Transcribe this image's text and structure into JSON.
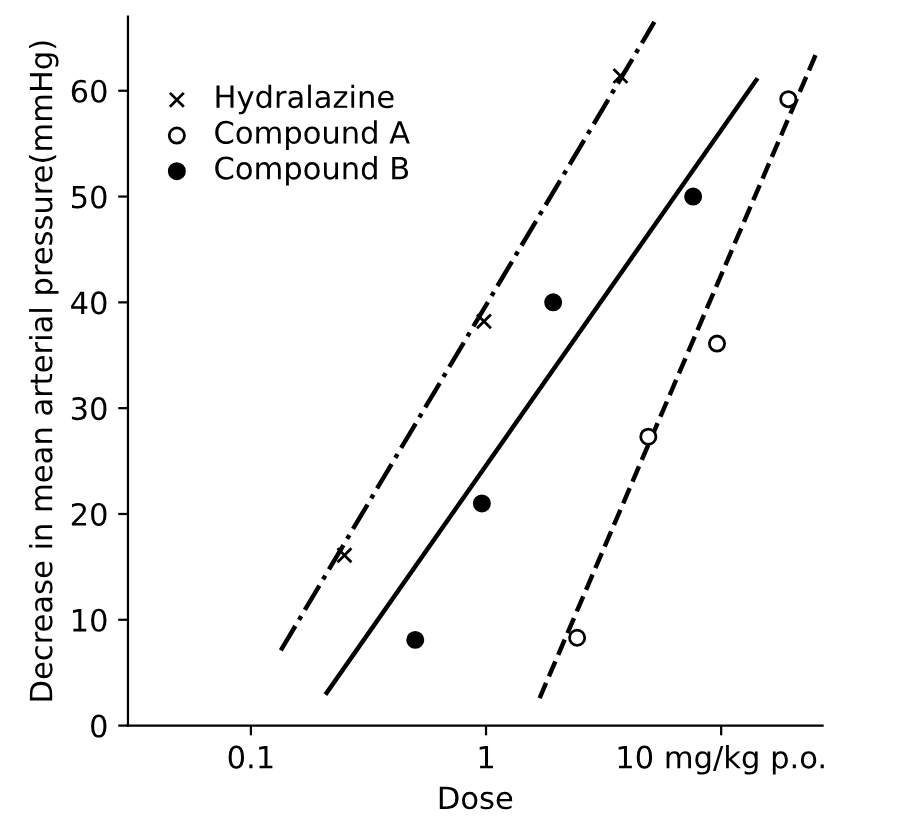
{
  "chart_data": {
    "type": "scatter",
    "xlabel": "Dose",
    "ylabel": "Decrease in mean arterial pressure(mmHg)",
    "log": "x",
    "xlim": [
      0.03,
      27
    ],
    "xticks": [
      0.1,
      1,
      {
        "value": 10,
        "label": "10 mg/kg p.o."
      }
    ],
    "ylim": [
      0,
      67
    ],
    "yticks": [
      0,
      10,
      20,
      30,
      40,
      50,
      60
    ],
    "grid": false,
    "legend": "top left",
    "series": [
      {
        "name": "Hydralazine",
        "marker": "cross",
        "color": "#000000",
        "x": [
          0.25,
          0.98,
          3.73
        ],
        "values": [
          16.1,
          38.2,
          61.4
        ]
      },
      {
        "name": "Compound A",
        "marker": "circle",
        "color": "#000000",
        "x": [
          2.44,
          4.9,
          9.6,
          19.3
        ],
        "values": [
          8.3,
          27.3,
          36.1,
          59.2
        ]
      },
      {
        "name": "Compound B",
        "marker": "circle",
        "color": "#000000",
        "x": [
          0.5,
          0.96,
          1.93,
          7.6
        ],
        "values": [
          8.1,
          21,
          40,
          50
        ]
      },
      {
        "type": "line",
        "line_style": "dashdot",
        "color": "#000000",
        "x": [
          0.134,
          5.2
        ],
        "values": [
          7.1,
          66.5
        ]
      },
      {
        "type": "line",
        "line_style": "dashed",
        "color": "#000000",
        "x": [
          1.69,
          25.8
        ],
        "values": [
          2.6,
          63.9
        ]
      },
      {
        "type": "line",
        "line_style": "solid",
        "color": "#000000",
        "x": [
          0.21,
          14.1
        ],
        "values": [
          3.1,
          61
        ]
      }
    ]
  }
}
